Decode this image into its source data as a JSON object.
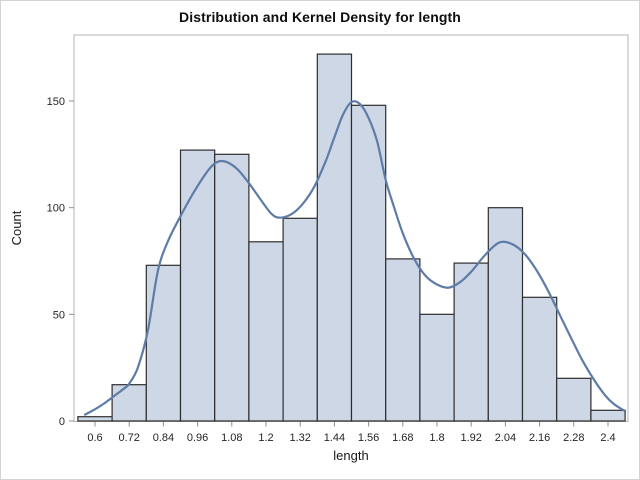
{
  "chart_data": {
    "type": "bar",
    "subtype": "histogram-with-kernel-density",
    "title": "Distribution and Kernel Density for length",
    "xlabel": "length",
    "ylabel": "Count",
    "bin_width": 0.12,
    "categories": [
      0.6,
      0.72,
      0.84,
      0.96,
      1.08,
      1.2,
      1.32,
      1.44,
      1.56,
      1.68,
      1.8,
      1.92,
      2.04,
      2.16,
      2.28,
      2.4
    ],
    "values": [
      2,
      17,
      73,
      127,
      125,
      84,
      95,
      172,
      148,
      76,
      50,
      74,
      100,
      58,
      20,
      5
    ],
    "x_tick_labels": [
      "0.6",
      "0.72",
      "0.84",
      "0.96",
      "1.08",
      "1.2",
      "1.32",
      "1.44",
      "1.56",
      "1.68",
      "1.8",
      "1.92",
      "2.04",
      "2.16",
      "2.28",
      "2.4"
    ],
    "y_tick_values": [
      0,
      50,
      100,
      150
    ],
    "y_tick_labels": [
      "0",
      "50",
      "100",
      "150"
    ],
    "xlim": [
      0.526,
      2.47
    ],
    "ylim": [
      0,
      181
    ],
    "grid": "off",
    "legend": "none",
    "series": [
      {
        "name": "kernel-density",
        "type": "line",
        "points": [
          [
            0.565,
            3
          ],
          [
            0.6,
            5.5
          ],
          [
            0.635,
            8.5
          ],
          [
            0.67,
            12
          ],
          [
            0.705,
            15.5
          ],
          [
            0.72,
            17.5
          ],
          [
            0.75,
            25
          ],
          [
            0.785,
            42
          ],
          [
            0.82,
            70
          ],
          [
            0.855,
            84
          ],
          [
            0.9,
            96
          ],
          [
            0.95,
            108
          ],
          [
            1.0,
            118
          ],
          [
            1.03,
            121.5
          ],
          [
            1.06,
            121.5
          ],
          [
            1.1,
            118
          ],
          [
            1.14,
            111.5
          ],
          [
            1.18,
            104
          ],
          [
            1.22,
            97
          ],
          [
            1.25,
            95.3
          ],
          [
            1.29,
            97
          ],
          [
            1.33,
            102
          ],
          [
            1.37,
            110
          ],
          [
            1.41,
            122
          ],
          [
            1.44,
            133
          ],
          [
            1.47,
            143.5
          ],
          [
            1.5,
            149.5
          ],
          [
            1.53,
            148.5
          ],
          [
            1.56,
            142
          ],
          [
            1.59,
            131
          ],
          [
            1.62,
            113
          ],
          [
            1.65,
            100
          ],
          [
            1.68,
            88
          ],
          [
            1.72,
            76
          ],
          [
            1.76,
            68
          ],
          [
            1.8,
            64
          ],
          [
            1.84,
            62.5
          ],
          [
            1.88,
            65
          ],
          [
            1.92,
            70
          ],
          [
            1.96,
            76.5
          ],
          [
            2.0,
            82
          ],
          [
            2.03,
            84
          ],
          [
            2.07,
            82.5
          ],
          [
            2.11,
            78
          ],
          [
            2.15,
            70.5
          ],
          [
            2.19,
            61
          ],
          [
            2.23,
            50
          ],
          [
            2.27,
            39
          ],
          [
            2.31,
            28.5
          ],
          [
            2.35,
            19.5
          ],
          [
            2.39,
            12
          ],
          [
            2.42,
            8
          ],
          [
            2.455,
            5
          ]
        ]
      }
    ],
    "colors": {
      "bar_fill": "#cdd7e6",
      "bar_stroke": "#2e2e2e",
      "curve": "#5e7ca7",
      "frame": "#b4b4b4",
      "tick": "#8f8f8f",
      "tick_label": "#262626",
      "title": "#0e0e0e",
      "axis_label": "#1a1a1a",
      "background": "#ffffff"
    }
  }
}
